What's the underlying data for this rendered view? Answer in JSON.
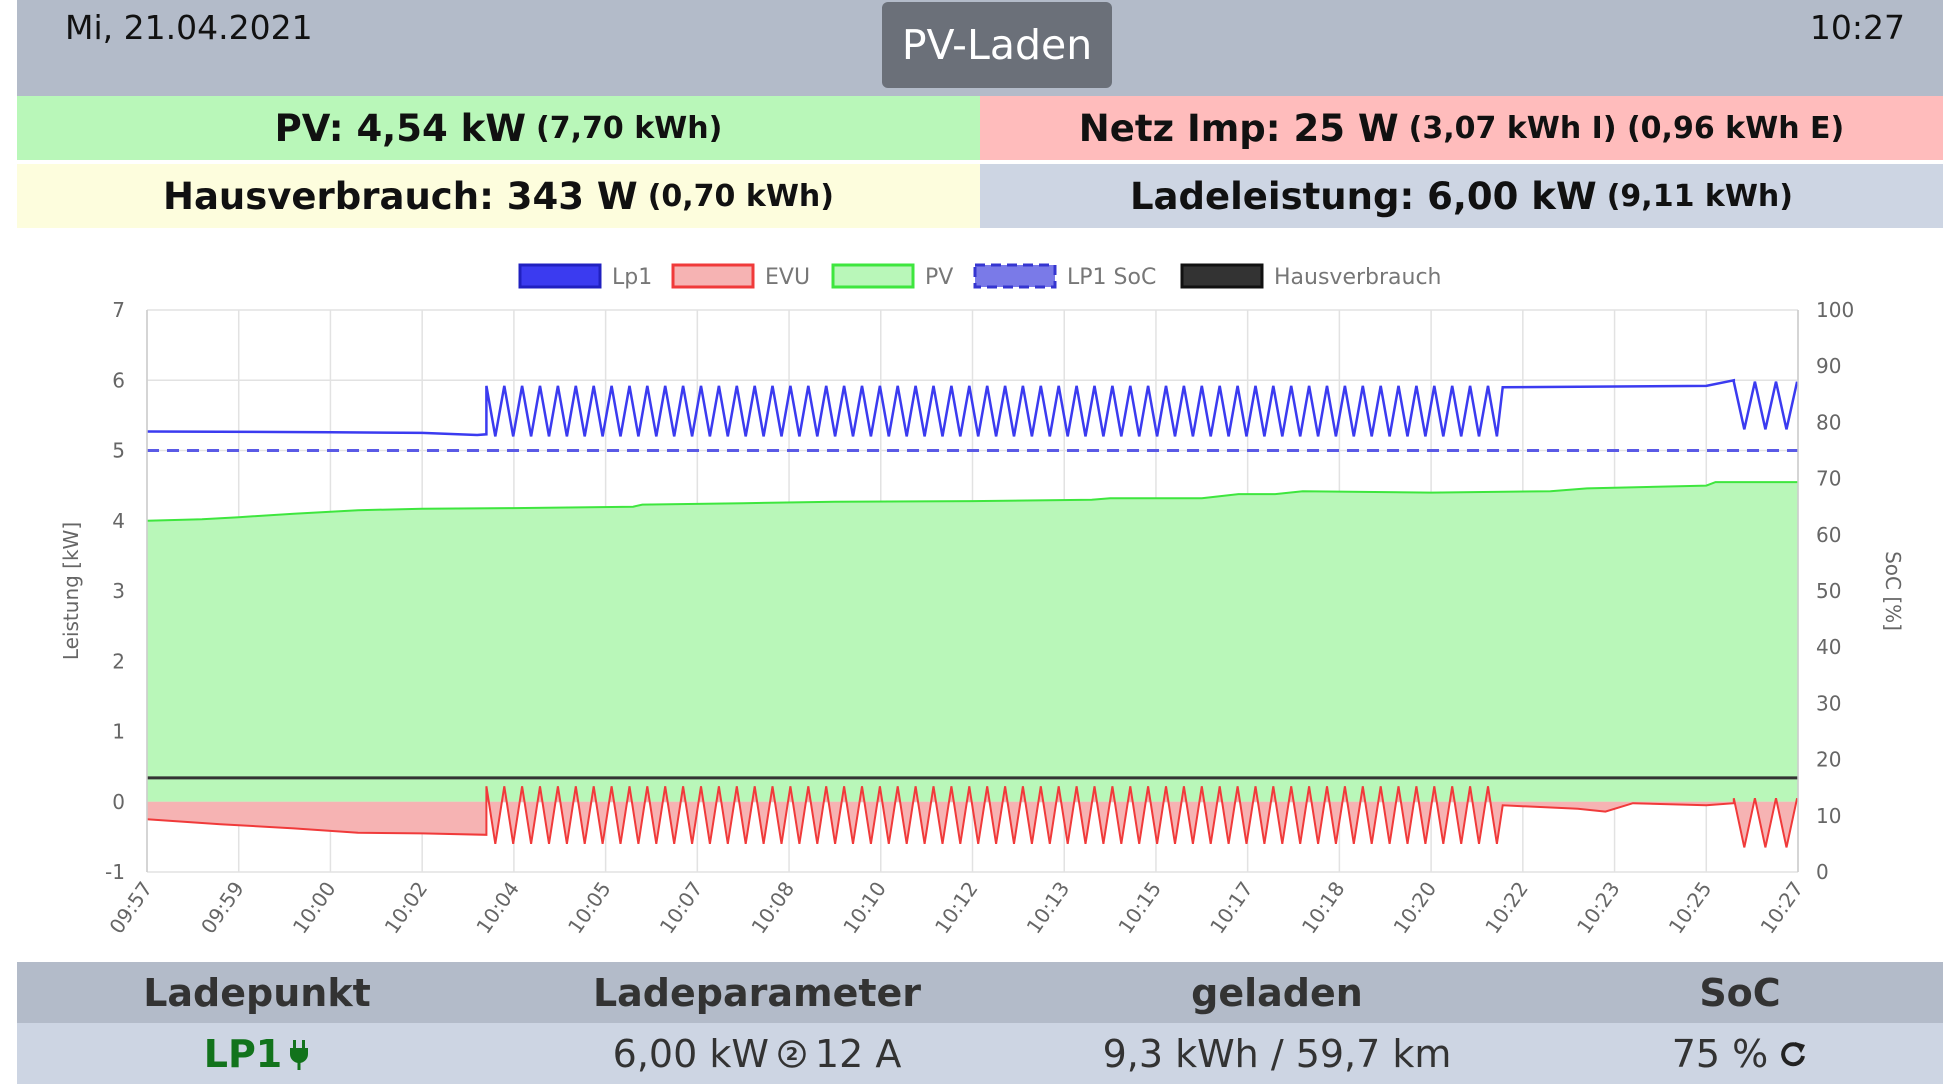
{
  "header": {
    "date": "Mi, 21.04.2021",
    "time": "10:27",
    "mode_button": "PV-Laden"
  },
  "stats": {
    "pv": {
      "main": "PV: 4,54 kW",
      "sub": "(7,70 kWh)"
    },
    "netz": {
      "main": "Netz Imp: 25 W",
      "sub": "(3,07 kWh I) (0,96 kWh E)"
    },
    "haus": {
      "main": "Hausverbrauch: 343 W",
      "sub": "(0,70 kWh)"
    },
    "lade": {
      "main": "Ladeleistung: 6,00 kW",
      "sub": "(9,11 kWh)"
    }
  },
  "table": {
    "headers": [
      "Ladepunkt",
      "Ladeparameter",
      "geladen",
      "SoC"
    ],
    "row": {
      "ladepunkt": "LP1",
      "power": "6,00 kW",
      "phases_icon_label": "2",
      "current": "12 A",
      "geladen": "9,3 kWh / 59,7 km",
      "soc": "75 %"
    }
  },
  "icons": {
    "plug": "plug-icon",
    "phases": "circled-two-icon",
    "refresh": "refresh-icon"
  },
  "colors": {
    "lp1": "#3b3bf0",
    "evu": "#f03a3a",
    "evu_fill": "#f6b3b3",
    "pv": "#3ee63e",
    "pv_fill": "#b9f7b9",
    "soc": "#5a5ae6",
    "haus": "#333333",
    "ladepunkt_green": "#12731c"
  },
  "chart_data": {
    "type": "line",
    "legend": [
      "Lp1",
      "EVU",
      "PV",
      "LP1 SoC",
      "Hausverbrauch"
    ],
    "legend_position": "top",
    "ylabel_left": "Leistung [kW]",
    "ylabel_right": "SoC [%]",
    "ylim_left": [
      -1,
      7
    ],
    "ylim_right": [
      0,
      100
    ],
    "yticks_left": [
      -1,
      0,
      1,
      2,
      3,
      4,
      5,
      6,
      7
    ],
    "yticks_right": [
      0,
      10,
      20,
      30,
      40,
      50,
      60,
      70,
      80,
      90,
      100
    ],
    "xticks": [
      "09:57",
      "09:59",
      "10:00",
      "10:02",
      "10:04",
      "10:05",
      "10:07",
      "10:08",
      "10:10",
      "10:12",
      "10:13",
      "10:15",
      "10:17",
      "10:18",
      "10:20",
      "10:22",
      "10:23",
      "10:25",
      "10:27"
    ],
    "grid": true,
    "x_range": [
      0,
      18
    ],
    "series": [
      {
        "name": "PV",
        "fill": true,
        "points": [
          [
            0,
            4.0
          ],
          [
            0.6,
            4.02
          ],
          [
            1.0,
            4.05
          ],
          [
            1.6,
            4.1
          ],
          [
            2.3,
            4.15
          ],
          [
            3.0,
            4.17
          ],
          [
            4.0,
            4.18
          ],
          [
            5.3,
            4.2
          ],
          [
            5.4,
            4.23
          ],
          [
            6.5,
            4.25
          ],
          [
            7.5,
            4.27
          ],
          [
            9.0,
            4.28
          ],
          [
            10.3,
            4.3
          ],
          [
            10.5,
            4.32
          ],
          [
            11.5,
            4.32
          ],
          [
            11.9,
            4.38
          ],
          [
            12.3,
            4.38
          ],
          [
            12.6,
            4.42
          ],
          [
            14.0,
            4.4
          ],
          [
            15.3,
            4.42
          ],
          [
            15.7,
            4.46
          ],
          [
            17.0,
            4.5
          ],
          [
            17.1,
            4.55
          ],
          [
            18.0,
            4.55
          ]
        ]
      },
      {
        "name": "Lp1",
        "base": [
          [
            0,
            5.27
          ],
          [
            2.0,
            5.26
          ],
          [
            3.0,
            5.25
          ],
          [
            3.6,
            5.22
          ],
          [
            3.7,
            5.23
          ]
        ],
        "oscillate": {
          "from": 3.7,
          "to": 14.78,
          "low": 5.2,
          "high": 5.92,
          "period": 0.195
        },
        "after": [
          [
            14.78,
            5.9
          ],
          [
            17.0,
            5.92
          ],
          [
            17.3,
            6.0
          ]
        ],
        "oscillate2": {
          "from": 17.3,
          "to": 18.0,
          "low": 5.3,
          "high": 5.98,
          "period": 0.23
        }
      },
      {
        "name": "EVU",
        "fill": true,
        "base": [
          [
            0,
            -0.25
          ],
          [
            0.8,
            -0.32
          ],
          [
            1.6,
            -0.38
          ],
          [
            2.3,
            -0.44
          ],
          [
            3.0,
            -0.45
          ],
          [
            3.7,
            -0.47
          ]
        ],
        "oscillate": {
          "from": 3.7,
          "to": 14.78,
          "low": -0.6,
          "high": 0.22,
          "period": 0.195
        },
        "after": [
          [
            14.78,
            -0.05
          ],
          [
            15.6,
            -0.1
          ],
          [
            15.9,
            -0.14
          ],
          [
            16.2,
            -0.02
          ],
          [
            17.0,
            -0.05
          ],
          [
            17.3,
            -0.02
          ]
        ],
        "oscillate2": {
          "from": 17.3,
          "to": 18.0,
          "low": -0.65,
          "high": 0.05,
          "period": 0.23
        }
      },
      {
        "name": "Hausverbrauch",
        "constant": 0.34
      },
      {
        "name": "LP1 SoC",
        "axis": "right",
        "constant": 75,
        "dashed": true
      }
    ]
  }
}
